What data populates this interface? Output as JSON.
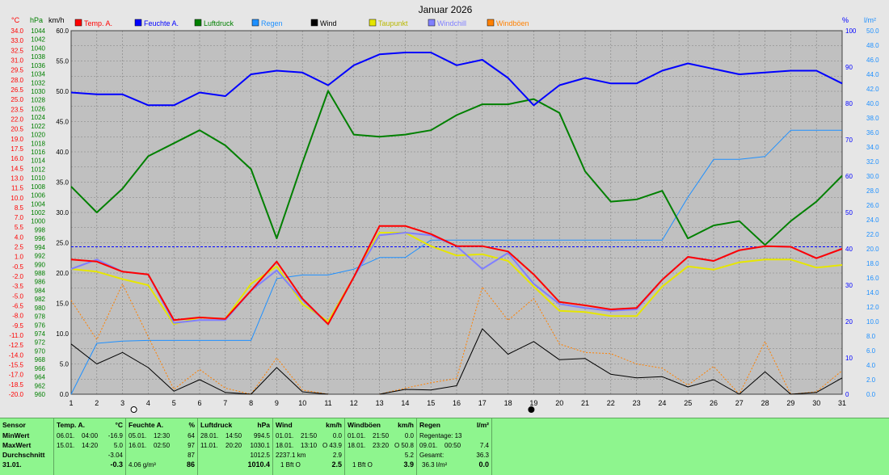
{
  "title": "Januar 2026",
  "legend": [
    {
      "name": "Temp. A.",
      "color": "#ff0000"
    },
    {
      "name": "Feuchte A.",
      "color": "#0000ff"
    },
    {
      "name": "Luftdruck",
      "color": "#008000"
    },
    {
      "name": "Regen",
      "color": "#1e90ff"
    },
    {
      "name": "Wind",
      "color": "#000000"
    },
    {
      "name": "Taupunkt",
      "color": "#e6e600"
    },
    {
      "name": "Windchill",
      "color": "#8080ff"
    },
    {
      "name": "Windböen",
      "color": "#ff8000"
    }
  ],
  "axes": {
    "temp_unit": "°C",
    "hpa_unit": "hPa",
    "kmh_unit": "km/h",
    "pct_unit": "%",
    "rain_unit": "l/m²",
    "temp_range": [
      -20,
      34
    ],
    "hpa_range": [
      960,
      1044
    ],
    "kmh_range": [
      0,
      60
    ],
    "pct_range": [
      0,
      100
    ],
    "rain_range": [
      0,
      50
    ]
  },
  "chart_data": {
    "type": "line",
    "title": "Januar 2026",
    "x": [
      1,
      2,
      3,
      4,
      5,
      6,
      7,
      8,
      9,
      10,
      11,
      12,
      13,
      14,
      15,
      16,
      17,
      18,
      19,
      20,
      21,
      22,
      23,
      24,
      25,
      26,
      27,
      28,
      29,
      30,
      31
    ],
    "series": [
      {
        "name": "Temp. A.",
        "axis": "temp",
        "color": "#ff0000",
        "values": [
          0.0,
          -0.3,
          -1.8,
          -2.2,
          -9.0,
          -8.6,
          -8.8,
          -4.6,
          -0.3,
          -5.8,
          -9.6,
          -2.6,
          5.0,
          5.0,
          3.8,
          2.0,
          2.0,
          1.2,
          -2.2,
          -6.3,
          -6.8,
          -7.4,
          -7.2,
          -3.0,
          0.4,
          -0.2,
          1.4,
          2.0,
          1.9,
          0.2,
          1.6
        ]
      },
      {
        "name": "Feuchte A.",
        "axis": "pct",
        "color": "#0000ff",
        "values": [
          83,
          82.5,
          82.5,
          79.5,
          79.5,
          83,
          82,
          88,
          89,
          88.5,
          85,
          90.5,
          93.5,
          94,
          94,
          90.5,
          92,
          87,
          79.5,
          85,
          87,
          85.5,
          85.5,
          89,
          91,
          89.5,
          88,
          88.5,
          89,
          89,
          85.5
        ]
      },
      {
        "name": "Luftdruck",
        "axis": "hpa",
        "color": "#008000",
        "values": [
          1008,
          1002,
          1007.5,
          1015,
          1018,
          1021,
          1017.5,
          1012,
          996,
          1013.5,
          1030.1,
          1020,
          1019.5,
          1020,
          1021,
          1024.5,
          1027,
          1027,
          1028.2,
          1025,
          1011.5,
          1004.5,
          1005,
          1007,
          996,
          999,
          1000,
          994.5,
          1000,
          1004.5,
          1010.5
        ]
      },
      {
        "name": "Regen",
        "axis": "rain",
        "color": "#1e90ff",
        "values": [
          0,
          7,
          7.3,
          7.4,
          7.4,
          7.4,
          7.4,
          7.4,
          15.9,
          16.4,
          16.4,
          17.2,
          18.8,
          18.8,
          21.2,
          21.2,
          21.2,
          21.2,
          21.2,
          21.2,
          21.2,
          21.2,
          21.2,
          21.2,
          27.1,
          32.3,
          32.3,
          32.7,
          36.3,
          36.3,
          36.3
        ]
      },
      {
        "name": "Wind",
        "axis": "kmh",
        "color": "#000000",
        "values": [
          8.3,
          5.0,
          6.9,
          4.4,
          0.5,
          2.4,
          0.3,
          0.0,
          4.4,
          0.4,
          0.0,
          null,
          0.0,
          0.8,
          0.7,
          1.4,
          10.8,
          6.6,
          8.7,
          5.7,
          5.9,
          3.3,
          2.7,
          2.9,
          1.2,
          2.4,
          0.0,
          3.7,
          0.0,
          0.3,
          2.7
        ]
      },
      {
        "name": "Taupunkt",
        "axis": "temp",
        "color": "#e6e600",
        "values": [
          -1.4,
          -1.8,
          -2.9,
          -3.8,
          -9.6,
          -8.6,
          -8.8,
          -3.6,
          -1.0,
          -6.6,
          -9.2,
          -2.6,
          4.0,
          4.0,
          2.0,
          0.6,
          0.8,
          -0.2,
          -4.0,
          -7.6,
          -7.8,
          -8.4,
          -8.4,
          -4.0,
          -1.0,
          -1.5,
          -0.4,
          0.0,
          0.0,
          -1.2,
          -0.8
        ]
      },
      {
        "name": "Windchill",
        "axis": "temp",
        "color": "#8080ff",
        "values": [
          -1.4,
          0.0,
          -1.8,
          -2.2,
          -9.4,
          -9.0,
          -9.0,
          -4.6,
          -1.6,
          -6.0,
          -9.6,
          -2.6,
          3.6,
          4.0,
          3.6,
          2.0,
          -1.4,
          1.0,
          -3.6,
          -6.6,
          -7.2,
          -7.6,
          -7.4,
          -3.0,
          0.4,
          -0.2,
          1.4,
          2.0,
          1.9,
          0.2,
          1.6
        ]
      },
      {
        "name": "Windböen",
        "axis": "kmh",
        "color": "#ff8000",
        "values": [
          15.5,
          9.0,
          18.2,
          9.5,
          0.8,
          4.1,
          1.0,
          0.0,
          6.0,
          0.7,
          0.0,
          null,
          0.0,
          1.0,
          1.9,
          2.6,
          17.7,
          12.2,
          15.8,
          8.3,
          6.9,
          6.7,
          5.0,
          4.3,
          1.5,
          4.6,
          0.0,
          8.7,
          0.0,
          0.4,
          3.9
        ]
      }
    ],
    "hlines": [
      {
        "axis": "temp",
        "value": 1.9,
        "color": "#0000ff"
      }
    ],
    "moon": [
      {
        "day": 3,
        "phase": "full"
      },
      {
        "day": 19,
        "phase": "new"
      }
    ],
    "ticks": {
      "temp": [
        "34.0",
        "33.0",
        "32.5",
        "31.0",
        "29.5",
        "28.0",
        "26.5",
        "25.0",
        "23.5",
        "22.0",
        "20.5",
        "19.0",
        "17.5",
        "16.0",
        "14.5",
        "13.0",
        "11.5",
        "10.0",
        "8.5",
        "7.0",
        "5.5",
        "4.0",
        "2.5",
        "1.0",
        "-0.5",
        "-2.0",
        "-3.5",
        "-5.0",
        "-6.5",
        "-8.0",
        "-9.5",
        "-11.0",
        "-12.5",
        "-14.0",
        "-15.5",
        "-17.0",
        "-18.5",
        "-20.0"
      ],
      "hpa": [
        "1044",
        "1042",
        "1040",
        "1038",
        "1036",
        "1034",
        "1032",
        "1030",
        "1028",
        "1026",
        "1024",
        "1022",
        "1020",
        "1018",
        "1016",
        "1014",
        "1012",
        "1010",
        "1008",
        "1006",
        "1004",
        "1002",
        "1000",
        "998",
        "996",
        "994",
        "992",
        "990",
        "988",
        "986",
        "984",
        "982",
        "980",
        "978",
        "976",
        "974",
        "972",
        "970",
        "968",
        "966",
        "964",
        "962",
        "960"
      ],
      "kmh": [
        "60.0",
        "55.0",
        "50.0",
        "45.0",
        "40.0",
        "35.0",
        "30.0",
        "25.0",
        "20.0",
        "15.0",
        "10.0",
        "5.0",
        "0.0"
      ],
      "pct": [
        "100",
        "90",
        "80",
        "70",
        "60",
        "50",
        "40",
        "30",
        "20",
        "10",
        "0"
      ],
      "rain": [
        "50.0",
        "48.0",
        "46.0",
        "44.0",
        "42.0",
        "40.0",
        "38.0",
        "36.0",
        "34.0",
        "32.0",
        "30.0",
        "28.0",
        "26.0",
        "24.0",
        "22.0",
        "20.0",
        "18.0",
        "16.0",
        "14.0",
        "12.0",
        "10.0",
        "8.0",
        "6.0",
        "4.0",
        "2.0",
        "0.0"
      ]
    },
    "grid": true
  },
  "table": {
    "sensor": {
      "title": "Sensor",
      "rows": [
        "MinWert",
        "MaxWert",
        "Durchschnitt",
        "31.01."
      ]
    },
    "temp": {
      "title": "Temp. A.",
      "unit": "°C",
      "min_date": "06.01.",
      "min_time": "04:00",
      "min_val": "-16.9",
      "max_date": "15.01.",
      "max_time": "14:20",
      "max_val": "5.0",
      "avg": "-3.04",
      "now": "-0.3"
    },
    "hum": {
      "title": "Feuchte A.",
      "unit": "%",
      "min_date": "05.01.",
      "min_time": "12:30",
      "min_val": "64",
      "max_date": "16.01.",
      "max_time": "02:50",
      "max_val": "97",
      "avg": "87",
      "abs": "4.06 g/m³",
      "now": "86"
    },
    "press": {
      "title": "Luftdruck",
      "unit": "hPa",
      "min_date": "28.01.",
      "min_time": "14:50",
      "min_val": "994.5",
      "max_date": "11.01.",
      "max_time": "20:20",
      "max_val": "1030.1",
      "avg": "1012.5",
      "now": "1010.4"
    },
    "wind": {
      "title": "Wind",
      "unit": "km/h",
      "min_date": "01.01.",
      "min_time": "21:50",
      "min_val": "0.0",
      "max_date": "18.01.",
      "max_time": "13:10",
      "max_dir": "O",
      "max_val": "43.9",
      "dist": "2237.1 km",
      "avg": "2.9",
      "now_text": "1 Bft O",
      "now": "2.5"
    },
    "gust": {
      "title": "Windböen",
      "unit": "km/h",
      "min_date": "01.01.",
      "min_time": "21:50",
      "min_val": "0.0",
      "max_date": "18.01.",
      "max_time": "23:20",
      "max_dir": "O",
      "max_val": "50.8",
      "avg": "5.2",
      "now_text": "1 Bft O",
      "now": "3.9"
    },
    "rain": {
      "title": "Regen",
      "unit": "l/m²",
      "days": "Regentage: 13",
      "max_date": "09.01.",
      "max_time": "00:50",
      "max_val": "7.4",
      "total_label": "Gesamt:",
      "total_val": "36.3",
      "now_text": "36.3 l/m²",
      "now": "0.0"
    }
  }
}
